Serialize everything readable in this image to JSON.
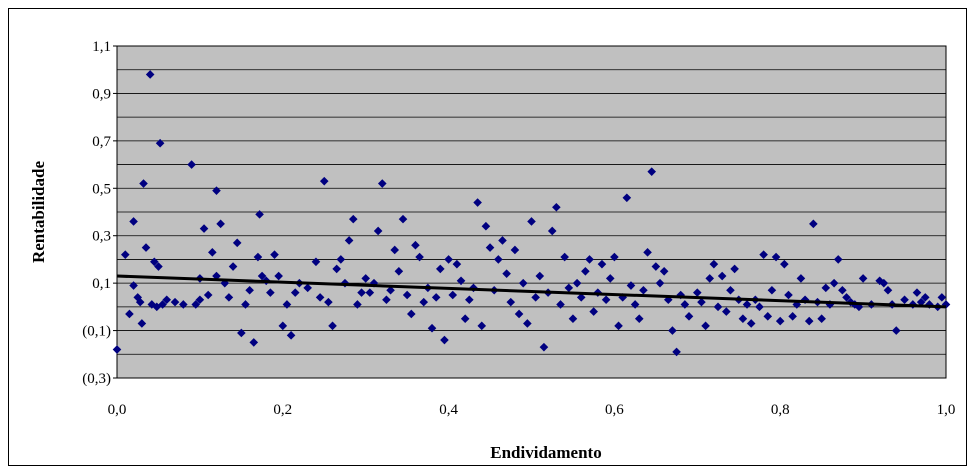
{
  "chart_data": {
    "type": "scatter",
    "title": "",
    "xlabel": "Endividamento",
    "ylabel": "Rentabilidade",
    "xlim": [
      0.0,
      1.0
    ],
    "ylim": [
      -0.3,
      1.1
    ],
    "x_ticks": [
      "0,0",
      "0,2",
      "0,4",
      "0,6",
      "0,8",
      "1,0"
    ],
    "y_ticks": [
      "1,1",
      "0,9",
      "0,7",
      "0,5",
      "0,3",
      "0,1",
      "(0,1)",
      "(0,3)"
    ],
    "grid": true,
    "legend": "none",
    "colors": {
      "plot_area": "#c0c0c0",
      "marker": "#000080",
      "trendline": "#000000",
      "gridline": "#000000"
    },
    "trendline": {
      "x": [
        0.0,
        1.0
      ],
      "y": [
        0.13,
        0.0
      ]
    },
    "series": [
      {
        "marker": "diamond",
        "points": [
          [
            0.0,
            -0.18
          ],
          [
            0.01,
            0.22
          ],
          [
            0.015,
            -0.03
          ],
          [
            0.02,
            0.36
          ],
          [
            0.02,
            0.09
          ],
          [
            0.025,
            0.04
          ],
          [
            0.028,
            0.02
          ],
          [
            0.03,
            -0.07
          ],
          [
            0.032,
            0.52
          ],
          [
            0.035,
            0.25
          ],
          [
            0.04,
            0.98
          ],
          [
            0.042,
            0.01
          ],
          [
            0.045,
            0.19
          ],
          [
            0.048,
            0.0
          ],
          [
            0.05,
            0.17
          ],
          [
            0.052,
            0.69
          ],
          [
            0.055,
            0.01
          ],
          [
            0.06,
            0.03
          ],
          [
            0.07,
            0.02
          ],
          [
            0.08,
            0.01
          ],
          [
            0.09,
            0.6
          ],
          [
            0.095,
            0.01
          ],
          [
            0.1,
            0.12
          ],
          [
            0.1,
            0.03
          ],
          [
            0.105,
            0.33
          ],
          [
            0.11,
            0.05
          ],
          [
            0.115,
            0.23
          ],
          [
            0.12,
            0.13
          ],
          [
            0.12,
            0.49
          ],
          [
            0.125,
            0.35
          ],
          [
            0.13,
            0.1
          ],
          [
            0.135,
            0.04
          ],
          [
            0.14,
            0.17
          ],
          [
            0.145,
            0.27
          ],
          [
            0.15,
            -0.11
          ],
          [
            0.155,
            0.01
          ],
          [
            0.16,
            0.07
          ],
          [
            0.165,
            -0.15
          ],
          [
            0.17,
            0.21
          ],
          [
            0.172,
            0.39
          ],
          [
            0.175,
            0.13
          ],
          [
            0.18,
            0.11
          ],
          [
            0.185,
            0.06
          ],
          [
            0.19,
            0.22
          ],
          [
            0.195,
            0.13
          ],
          [
            0.2,
            -0.08
          ],
          [
            0.205,
            0.01
          ],
          [
            0.21,
            -0.12
          ],
          [
            0.215,
            0.06
          ],
          [
            0.22,
            0.1
          ],
          [
            0.23,
            0.08
          ],
          [
            0.24,
            0.19
          ],
          [
            0.245,
            0.04
          ],
          [
            0.25,
            0.53
          ],
          [
            0.255,
            0.02
          ],
          [
            0.26,
            -0.08
          ],
          [
            0.265,
            0.16
          ],
          [
            0.27,
            0.2
          ],
          [
            0.275,
            0.1
          ],
          [
            0.28,
            0.28
          ],
          [
            0.285,
            0.37
          ],
          [
            0.29,
            0.01
          ],
          [
            0.295,
            0.06
          ],
          [
            0.3,
            0.12
          ],
          [
            0.305,
            0.06
          ],
          [
            0.31,
            0.1
          ],
          [
            0.315,
            0.32
          ],
          [
            0.32,
            0.52
          ],
          [
            0.325,
            0.03
          ],
          [
            0.33,
            0.07
          ],
          [
            0.335,
            0.24
          ],
          [
            0.34,
            0.15
          ],
          [
            0.345,
            0.37
          ],
          [
            0.35,
            0.05
          ],
          [
            0.355,
            -0.03
          ],
          [
            0.36,
            0.26
          ],
          [
            0.365,
            0.21
          ],
          [
            0.37,
            0.02
          ],
          [
            0.375,
            0.08
          ],
          [
            0.38,
            -0.09
          ],
          [
            0.385,
            0.04
          ],
          [
            0.39,
            0.16
          ],
          [
            0.395,
            -0.14
          ],
          [
            0.4,
            0.2
          ],
          [
            0.405,
            0.05
          ],
          [
            0.41,
            0.18
          ],
          [
            0.415,
            0.11
          ],
          [
            0.42,
            -0.05
          ],
          [
            0.425,
            0.03
          ],
          [
            0.43,
            0.08
          ],
          [
            0.435,
            0.44
          ],
          [
            0.44,
            -0.08
          ],
          [
            0.445,
            0.34
          ],
          [
            0.45,
            0.25
          ],
          [
            0.455,
            0.07
          ],
          [
            0.46,
            0.2
          ],
          [
            0.465,
            0.28
          ],
          [
            0.47,
            0.14
          ],
          [
            0.475,
            0.02
          ],
          [
            0.48,
            0.24
          ],
          [
            0.485,
            -0.03
          ],
          [
            0.49,
            0.1
          ],
          [
            0.495,
            -0.07
          ],
          [
            0.5,
            0.36
          ],
          [
            0.505,
            0.04
          ],
          [
            0.51,
            0.13
          ],
          [
            0.515,
            -0.17
          ],
          [
            0.52,
            0.06
          ],
          [
            0.525,
            0.32
          ],
          [
            0.53,
            0.42
          ],
          [
            0.535,
            0.01
          ],
          [
            0.54,
            0.21
          ],
          [
            0.545,
            0.08
          ],
          [
            0.55,
            -0.05
          ],
          [
            0.555,
            0.1
          ],
          [
            0.56,
            0.04
          ],
          [
            0.565,
            0.15
          ],
          [
            0.57,
            0.2
          ],
          [
            0.575,
            -0.02
          ],
          [
            0.58,
            0.06
          ],
          [
            0.585,
            0.18
          ],
          [
            0.59,
            0.03
          ],
          [
            0.595,
            0.12
          ],
          [
            0.6,
            0.21
          ],
          [
            0.605,
            -0.08
          ],
          [
            0.61,
            0.04
          ],
          [
            0.615,
            0.46
          ],
          [
            0.62,
            0.09
          ],
          [
            0.625,
            0.01
          ],
          [
            0.63,
            -0.05
          ],
          [
            0.635,
            0.07
          ],
          [
            0.64,
            0.23
          ],
          [
            0.645,
            0.57
          ],
          [
            0.65,
            0.17
          ],
          [
            0.655,
            0.1
          ],
          [
            0.66,
            0.15
          ],
          [
            0.665,
            0.03
          ],
          [
            0.67,
            -0.1
          ],
          [
            0.675,
            -0.19
          ],
          [
            0.68,
            0.05
          ],
          [
            0.685,
            0.01
          ],
          [
            0.69,
            -0.04
          ],
          [
            0.7,
            0.06
          ],
          [
            0.705,
            0.02
          ],
          [
            0.71,
            -0.08
          ],
          [
            0.715,
            0.12
          ],
          [
            0.72,
            0.18
          ],
          [
            0.725,
            0.0
          ],
          [
            0.73,
            0.13
          ],
          [
            0.735,
            -0.02
          ],
          [
            0.74,
            0.07
          ],
          [
            0.745,
            0.16
          ],
          [
            0.75,
            0.03
          ],
          [
            0.755,
            -0.05
          ],
          [
            0.76,
            0.01
          ],
          [
            0.765,
            -0.07
          ],
          [
            0.77,
            0.03
          ],
          [
            0.775,
            0.0
          ],
          [
            0.78,
            0.22
          ],
          [
            0.785,
            -0.04
          ],
          [
            0.79,
            0.07
          ],
          [
            0.795,
            0.21
          ],
          [
            0.8,
            -0.06
          ],
          [
            0.805,
            0.18
          ],
          [
            0.81,
            0.05
          ],
          [
            0.815,
            -0.04
          ],
          [
            0.82,
            0.01
          ],
          [
            0.825,
            0.12
          ],
          [
            0.83,
            0.03
          ],
          [
            0.835,
            -0.06
          ],
          [
            0.84,
            0.35
          ],
          [
            0.845,
            0.02
          ],
          [
            0.85,
            -0.05
          ],
          [
            0.855,
            0.08
          ],
          [
            0.86,
            0.01
          ],
          [
            0.865,
            0.1
          ],
          [
            0.87,
            0.2
          ],
          [
            0.875,
            0.07
          ],
          [
            0.88,
            0.04
          ],
          [
            0.885,
            0.02
          ],
          [
            0.89,
            0.01
          ],
          [
            0.895,
            0.0
          ],
          [
            0.9,
            0.12
          ],
          [
            0.91,
            0.01
          ],
          [
            0.92,
            0.11
          ],
          [
            0.925,
            0.1
          ],
          [
            0.93,
            0.07
          ],
          [
            0.935,
            0.01
          ],
          [
            0.94,
            -0.1
          ],
          [
            0.95,
            0.03
          ],
          [
            0.96,
            0.01
          ],
          [
            0.965,
            0.06
          ],
          [
            0.97,
            0.02
          ],
          [
            0.975,
            0.04
          ],
          [
            0.98,
            0.01
          ],
          [
            0.99,
            0.0
          ],
          [
            0.995,
            0.04
          ],
          [
            1.0,
            0.01
          ]
        ]
      }
    ]
  }
}
